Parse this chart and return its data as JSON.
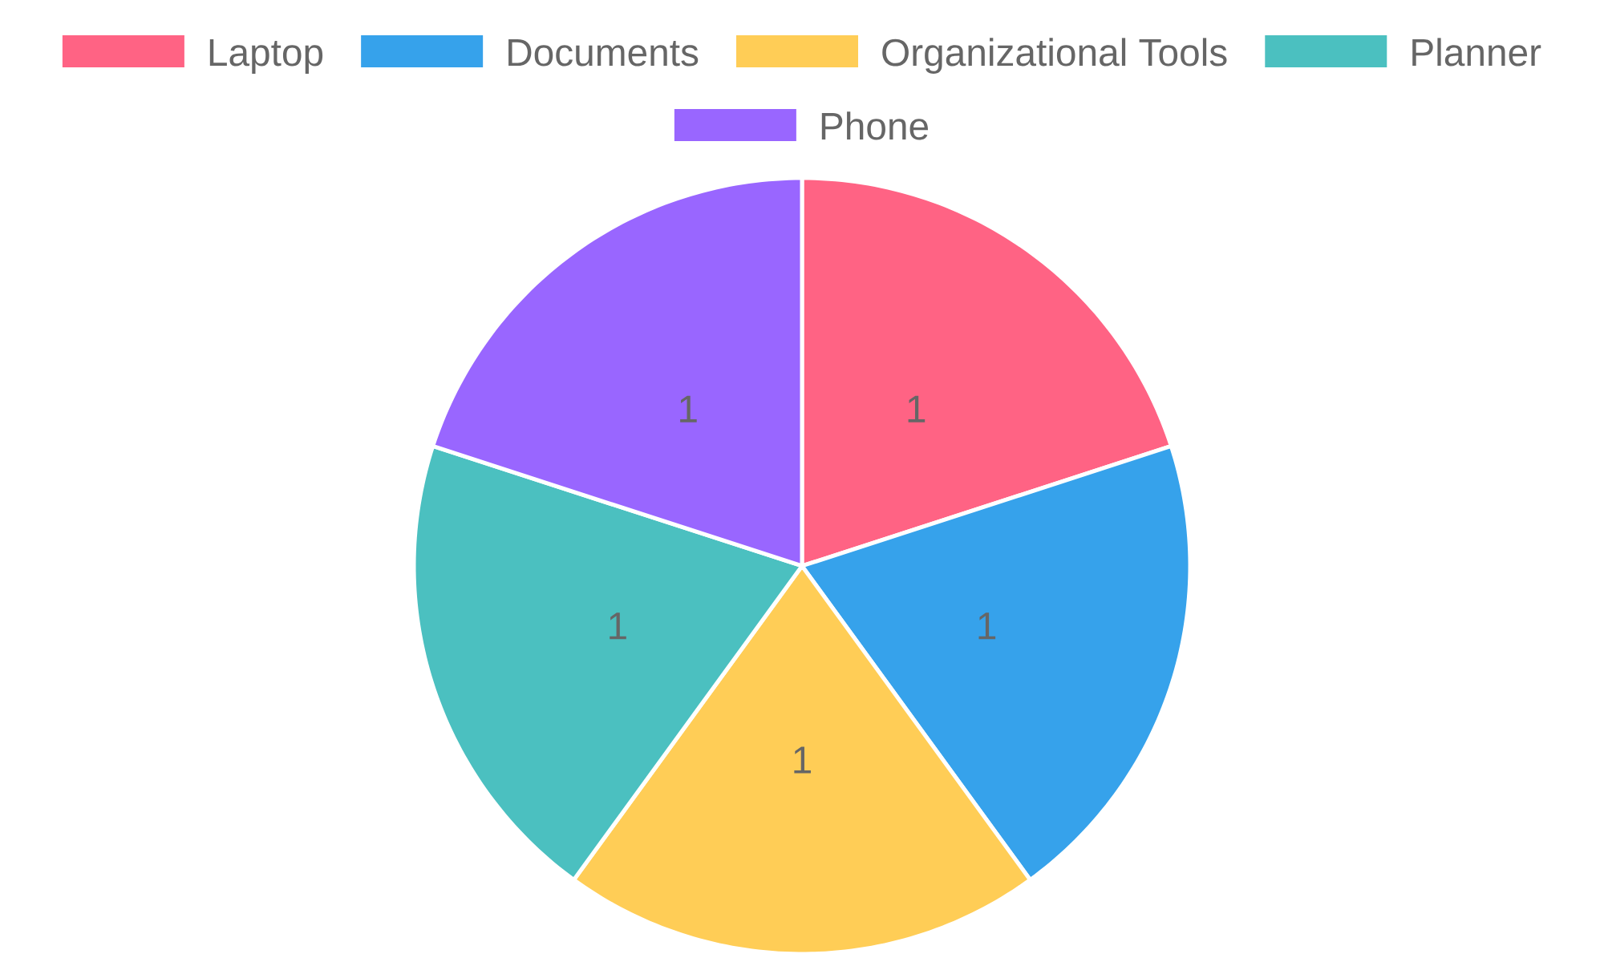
{
  "chart_data": {
    "type": "pie",
    "categories": [
      "Laptop",
      "Documents",
      "Organizational Tools",
      "Planner",
      "Phone"
    ],
    "values": [
      1,
      1,
      1,
      1,
      1
    ],
    "colors": [
      "#ff6384",
      "#36a2eb",
      "#ffcd56",
      "#4bc0c0",
      "#9966ff"
    ],
    "legend": "top",
    "data_labels": true
  }
}
